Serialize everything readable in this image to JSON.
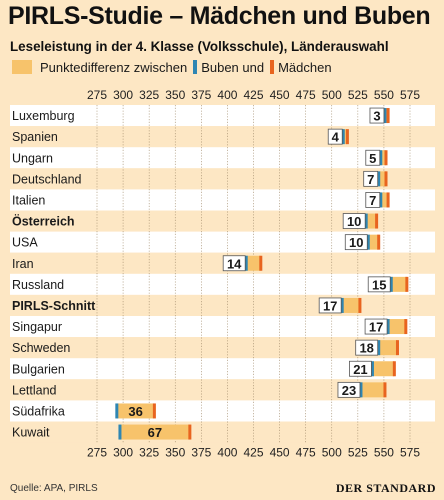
{
  "title": "PIRLS-Studie – Mädchen und Buben",
  "subtitle": "Leseleistung in der 4. Klasse (Volksschule), Länderauswahl",
  "legend": {
    "diff": "Punktedifferenz zwischen",
    "boys": "Buben und",
    "girls": "Mädchen"
  },
  "source": "Quelle: APA, PIRLS",
  "brand": "DER STANDARD",
  "colors": {
    "background": "#fde7c4",
    "bar_fill": "#f7c36b",
    "boys": "#2e86b3",
    "girls": "#e8641f",
    "row_alt": "#ffffff",
    "grid": "#a08a6a"
  },
  "chart_data": {
    "type": "bar",
    "title": "PIRLS-Studie – Mädchen und Buben",
    "subtitle": "Leseleistung in der 4. Klasse (Volksschule), Länderauswahl",
    "xlim": [
      275,
      575
    ],
    "x_ticks": [
      275,
      300,
      325,
      350,
      375,
      400,
      425,
      450,
      475,
      500,
      525,
      550,
      575
    ],
    "series": [
      {
        "name": "Buben",
        "values": [
          551,
          511,
          547,
          545,
          547,
          533,
          535,
          418,
          557,
          510,
          554,
          545,
          539,
          528,
          294,
          297
        ]
      },
      {
        "name": "Mädchen",
        "values": [
          554,
          515,
          552,
          552,
          554,
          543,
          545,
          432,
          572,
          527,
          571,
          563,
          560,
          551,
          330,
          364
        ]
      }
    ],
    "categories": [
      "Luxemburg",
      "Spanien",
      "Ungarn",
      "Deutschland",
      "Italien",
      "Österreich",
      "USA",
      "Iran",
      "Russland",
      "PIRLS-Schnitt",
      "Singapur",
      "Schweden",
      "Bulgarien",
      "Lettland",
      "Südafrika",
      "Kuwait"
    ],
    "bold_categories": [
      "Österreich",
      "PIRLS-Schnitt"
    ],
    "differences": [
      3,
      4,
      5,
      7,
      7,
      10,
      10,
      14,
      15,
      17,
      17,
      18,
      21,
      23,
      36,
      67
    ]
  }
}
